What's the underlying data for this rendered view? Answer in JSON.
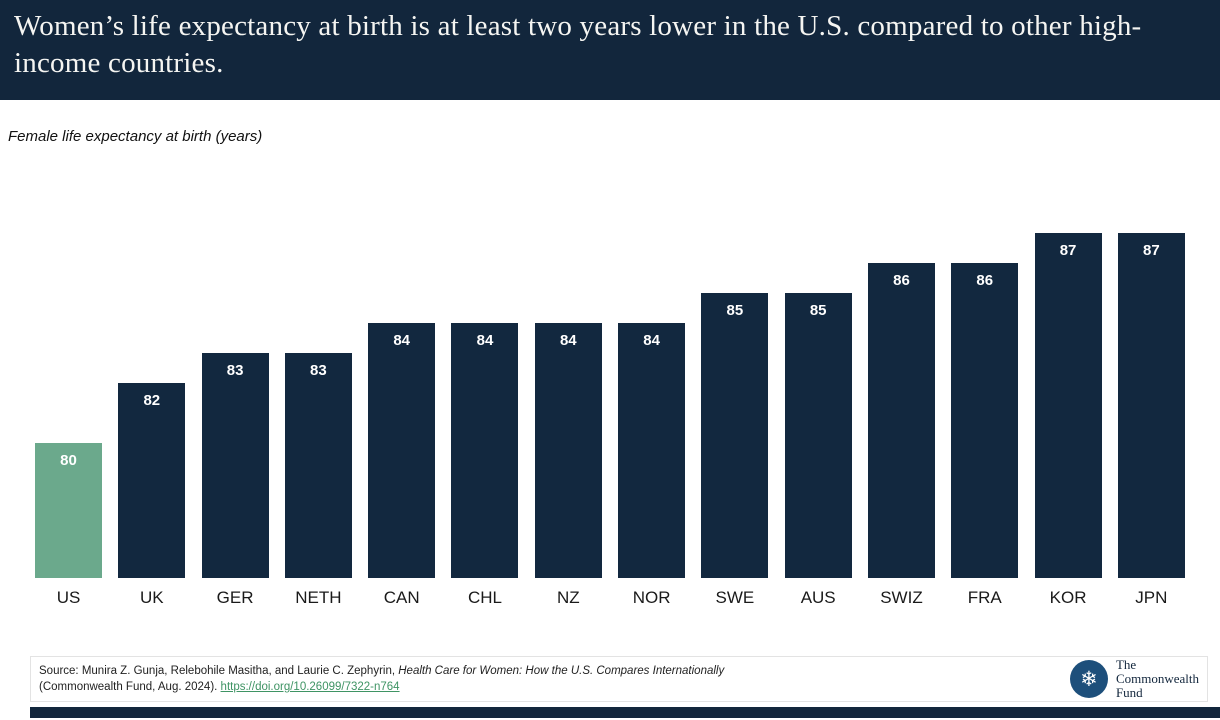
{
  "header": {
    "title": "Women’s life expectancy at birth is at least two years lower in the U.S. compared to other high-income countries."
  },
  "subtitle": "Female life expectancy at birth (years)",
  "chart_data": {
    "type": "bar",
    "title": "Female life expectancy at birth (years)",
    "categories": [
      "US",
      "UK",
      "GER",
      "NETH",
      "CAN",
      "CHL",
      "NZ",
      "NOR",
      "SWE",
      "AUS",
      "SWIZ",
      "FRA",
      "KOR",
      "JPN"
    ],
    "values": [
      80,
      82,
      83,
      83,
      84,
      84,
      84,
      84,
      85,
      85,
      86,
      86,
      87,
      87
    ],
    "xlabel": "",
    "ylabel": "Female life expectancy at birth (years)",
    "ylim": [
      75.5,
      88
    ],
    "grid": false,
    "legend": "none",
    "highlight_index": 0,
    "bar_color": "#12283F",
    "highlight_color": "#6BA98C",
    "value_label_color": "#FFFFFF"
  },
  "source": {
    "prefix": "Source: Munira Z. Gunja, Relebohile Masitha, and Laurie C. Zephyrin, ",
    "work_title": "Health Care for Women: How the U.S. Compares Internationally",
    "line2_prefix": "(Commonwealth Fund, Aug. 2024). ",
    "link": "https://doi.org/10.26099/7322-n764"
  },
  "logo": {
    "icon": "snowflake-icon",
    "icon_glyph": "❄",
    "line1": "The",
    "line2": "Commonwealth",
    "line3": "Fund"
  },
  "colors": {
    "header_bg": "#12263C",
    "bar_navy": "#12283F",
    "us_green": "#6BA98C",
    "link_green": "#3f9464",
    "logo_blue": "#1d4f7b"
  }
}
